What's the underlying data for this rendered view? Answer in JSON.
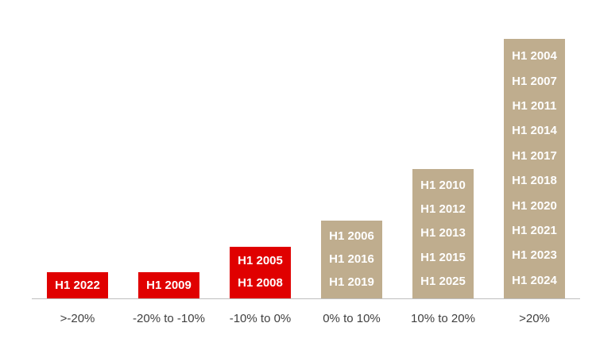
{
  "chart_data": {
    "type": "bar",
    "categories": [
      ">-20%",
      "-20% to -10%",
      "-10% to 0%",
      "0% to 10%",
      "10% to 20%",
      ">20%"
    ],
    "values": [
      1,
      1,
      2,
      3,
      5,
      10
    ],
    "items": [
      [
        "H1 2022"
      ],
      [
        "H1 2009"
      ],
      [
        "H1 2005",
        "H1 2008"
      ],
      [
        "H1 2006",
        "H1 2016",
        "H1 2019"
      ],
      [
        "H1 2010",
        "H1 2012",
        "H1 2013",
        "H1 2015",
        "H1 2025"
      ],
      [
        "H1 2004",
        "H1 2007",
        "H1 2011",
        "H1 2014",
        "H1 2017",
        "H1 2018",
        "H1 2020",
        "H1 2021",
        "H1 2023",
        "H1 2024"
      ]
    ],
    "ylim": [
      0,
      10
    ],
    "grid": false,
    "colors": {
      "negative": "#e00000",
      "positive": "#bfad8e"
    },
    "category_color": [
      "negative",
      "negative",
      "negative",
      "positive",
      "positive",
      "positive"
    ]
  }
}
